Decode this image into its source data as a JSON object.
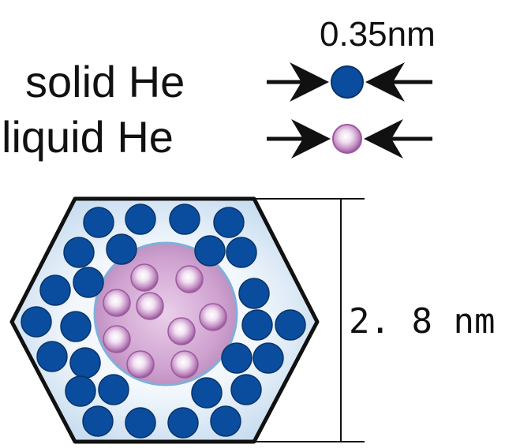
{
  "atom_size_label": "0.35nm",
  "legend": {
    "solid_label": "solid He",
    "liquid_label": "liquid He"
  },
  "pore_size_label": "2. 8 nm",
  "colors": {
    "solid_atom": "#0a4d9e",
    "liquid_atom_core": "#f4e6f4",
    "liquid_atom_edge": "#a35aa3",
    "liquid_region": "#c796c8",
    "pore_fill": "#ddeaf6",
    "outline": "#111111"
  }
}
